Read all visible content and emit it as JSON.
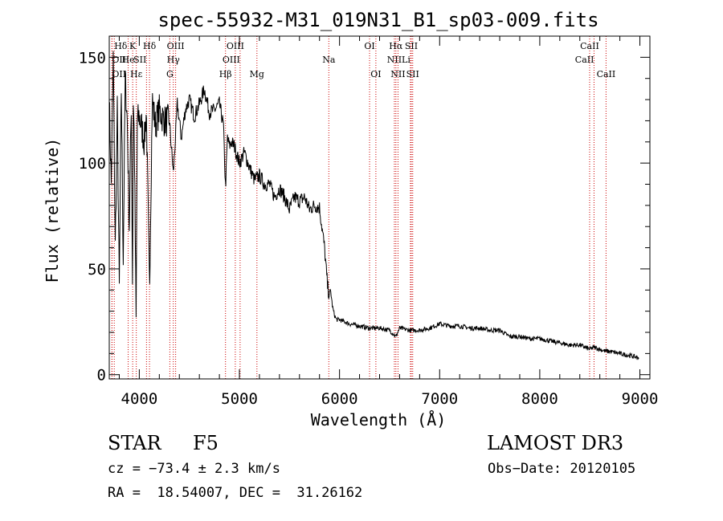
{
  "chart_data": {
    "type": "line",
    "title": "spec-55932-M31_019N31_B1_sp03-009.fits",
    "xlabel": "Wavelength (Å)",
    "ylabel": "Flux (relative)",
    "xlim": [
      3700,
      9100
    ],
    "ylim": [
      -2,
      160
    ],
    "xticks": [
      4000,
      5000,
      6000,
      7000,
      8000,
      9000
    ],
    "yticks": [
      0,
      50,
      100,
      150
    ],
    "line_color": "#000000",
    "marker_color": "#cc0000",
    "spectrum_anchor_points": {
      "x": [
        3700,
        3720,
        3740,
        3760,
        3780,
        3800,
        3820,
        3840,
        3860,
        3880,
        3900,
        3920,
        3933,
        3940,
        3950,
        3968,
        3980,
        4000,
        4020,
        4050,
        4070,
        4102,
        4130,
        4160,
        4200,
        4250,
        4300,
        4340,
        4380,
        4420,
        4460,
        4500,
        4550,
        4600,
        4650,
        4700,
        4750,
        4800,
        4840,
        4861,
        4880,
        4900,
        4920,
        4950,
        5000,
        5050,
        5100,
        5150,
        5200,
        5250,
        5300,
        5350,
        5400,
        5450,
        5500,
        5550,
        5600,
        5650,
        5700,
        5750,
        5800,
        5850,
        5880,
        5895,
        5910,
        5930,
        5950,
        5970,
        6000,
        6050,
        6100,
        6200,
        6300,
        6400,
        6500,
        6563,
        6600,
        6700,
        6800,
        6900,
        7000,
        7100,
        7200,
        7300,
        7400,
        7500,
        7600,
        7700,
        7800,
        7900,
        8000,
        8100,
        8200,
        8300,
        8400,
        8500,
        8542,
        8600,
        8662,
        8700,
        8800,
        8900,
        8990
      ],
      "y": [
        130,
        90,
        150,
        60,
        125,
        40,
        135,
        55,
        140,
        120,
        70,
        128,
        38,
        130,
        112,
        25,
        120,
        122,
        118,
        110,
        125,
        40,
        130,
        118,
        125,
        120,
        120,
        95,
        128,
        112,
        125,
        130,
        122,
        128,
        135,
        124,
        125,
        128,
        118,
        88,
        112,
        108,
        110,
        108,
        100,
        105,
        98,
        92,
        94,
        90,
        90,
        84,
        88,
        84,
        78,
        84,
        82,
        84,
        78,
        80,
        79,
        60,
        42,
        38,
        40,
        32,
        28,
        26,
        26,
        25,
        24,
        23,
        22,
        22,
        21,
        18,
        22,
        21,
        21,
        22,
        24,
        23,
        23,
        22,
        22,
        21,
        21,
        18,
        18,
        17,
        17,
        16,
        15,
        14,
        14,
        12,
        13,
        12,
        11,
        11,
        10,
        9,
        8
      ]
    },
    "line_markers": [
      {
        "label": "Hδ",
        "x": 3750,
        "row": 0,
        "anchor": "start"
      },
      {
        "label": "K",
        "x": 3934,
        "row": 0,
        "anchor": "middle"
      },
      {
        "label": "Hδ",
        "x": 4102,
        "row": 0,
        "anchor": "middle"
      },
      {
        "label": "OIII",
        "x": 4363,
        "row": 0,
        "anchor": "middle"
      },
      {
        "label": "OIII",
        "x": 4959,
        "row": 0,
        "anchor": "middle"
      },
      {
        "label": "OI",
        "x": 6300,
        "row": 0,
        "anchor": "middle"
      },
      {
        "label": "Hα",
        "x": 6563,
        "row": 0,
        "anchor": "middle"
      },
      {
        "label": "SII",
        "x": 6717,
        "row": 0,
        "anchor": "middle"
      },
      {
        "label": "CaII",
        "x": 8498,
        "row": 0,
        "anchor": "middle"
      },
      {
        "label": "OII",
        "x": 3727,
        "row": 1,
        "anchor": "start"
      },
      {
        "label": "He",
        "x": 3889,
        "row": 1,
        "anchor": "middle"
      },
      {
        "label": "SII",
        "x": 4072,
        "row": 1,
        "anchor": "end"
      },
      {
        "label": "Hγ",
        "x": 4340,
        "row": 1,
        "anchor": "middle"
      },
      {
        "label": "OIII",
        "x": 5007,
        "row": 1,
        "anchor": "end"
      },
      {
        "label": "Na",
        "x": 5893,
        "row": 1,
        "anchor": "middle"
      },
      {
        "label": "NII",
        "x": 6548,
        "row": 1,
        "anchor": "middle"
      },
      {
        "label": "Li",
        "x": 6708,
        "row": 1,
        "anchor": "end"
      },
      {
        "label": "CaII",
        "x": 8542,
        "row": 1,
        "anchor": "end"
      },
      {
        "label": "OII",
        "x": 3727,
        "row": 2,
        "anchor": "start"
      },
      {
        "label": "Hε",
        "x": 3970,
        "row": 2,
        "anchor": "middle"
      },
      {
        "label": "G",
        "x": 4305,
        "row": 2,
        "anchor": "middle"
      },
      {
        "label": "Hβ",
        "x": 4861,
        "row": 2,
        "anchor": "middle"
      },
      {
        "label": "Mg",
        "x": 5175,
        "row": 2,
        "anchor": "middle"
      },
      {
        "label": "OI",
        "x": 6363,
        "row": 2,
        "anchor": "middle"
      },
      {
        "label": "NII",
        "x": 6584,
        "row": 2,
        "anchor": "middle"
      },
      {
        "label": "SII",
        "x": 6731,
        "row": 2,
        "anchor": "middle"
      },
      {
        "label": "CaII",
        "x": 8662,
        "row": 2,
        "anchor": "middle"
      }
    ]
  },
  "info": {
    "class_label": "STAR",
    "subclass_label": "F5",
    "survey_label": "LAMOST DR3",
    "cz_text": "cz = −73.4 ± 2.3 km/s",
    "obs_date_text": "Obs−Date: 20120105",
    "coords_text": "RA =  18.54007, DEC =  31.26162"
  }
}
